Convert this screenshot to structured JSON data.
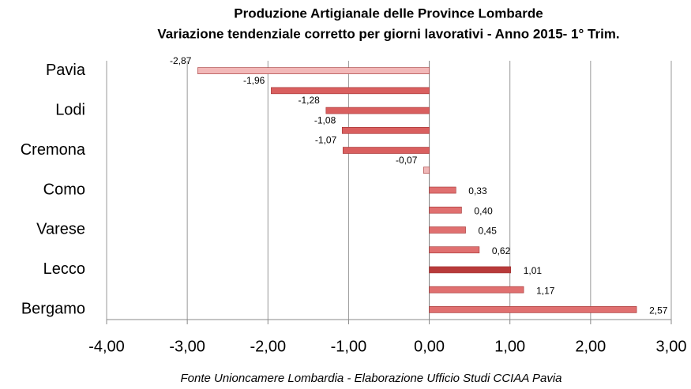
{
  "chart_data": {
    "type": "hbar",
    "title": "Produzione Artigianale delle Province Lombarde",
    "subtitle": "Variazione tendenziale corretto per giorni lavorativi - Anno 2015- 1° Trim.",
    "source": "Fonte Unioncamere Lombardia - Elaborazione Ufficio Studi CCIAA Pavia",
    "categories": [
      "Pavia",
      null,
      "Lodi",
      null,
      "Cremona",
      null,
      "Como",
      null,
      "Varese",
      null,
      "Lecco",
      null,
      "Bergamo"
    ],
    "values": [
      -2.87,
      -1.96,
      -1.28,
      -1.08,
      -1.07,
      -0.07,
      0.33,
      0.4,
      0.45,
      0.62,
      1.01,
      1.17,
      2.57
    ],
    "value_labels": [
      "-2,87",
      "-1,96",
      "-1,28",
      "-1,08",
      "-1,07",
      "-0,07",
      "0,33",
      "0,40",
      "0,45",
      "0,62",
      "1,01",
      "1,17",
      "2,57"
    ],
    "colors": [
      "#f2b8b8",
      "#d95f5f",
      "#d95f5f",
      "#d95f5f",
      "#d95f5f",
      "#f0b8b8",
      "#e07070",
      "#e07070",
      "#e07070",
      "#e07070",
      "#b83a3a",
      "#e07070",
      "#e07070"
    ],
    "xlim": [
      -4,
      3
    ],
    "xticks": [
      {
        "value": -4,
        "label": "-4,00"
      },
      {
        "value": -3,
        "label": "-3,00"
      },
      {
        "value": -2,
        "label": "-2,00"
      },
      {
        "value": -1,
        "label": "-1,00"
      },
      {
        "value": 0,
        "label": "0,00"
      },
      {
        "value": 1,
        "label": "1,00"
      },
      {
        "value": 2,
        "label": "2,00"
      },
      {
        "value": 3,
        "label": "3,00"
      }
    ],
    "grid": true
  }
}
